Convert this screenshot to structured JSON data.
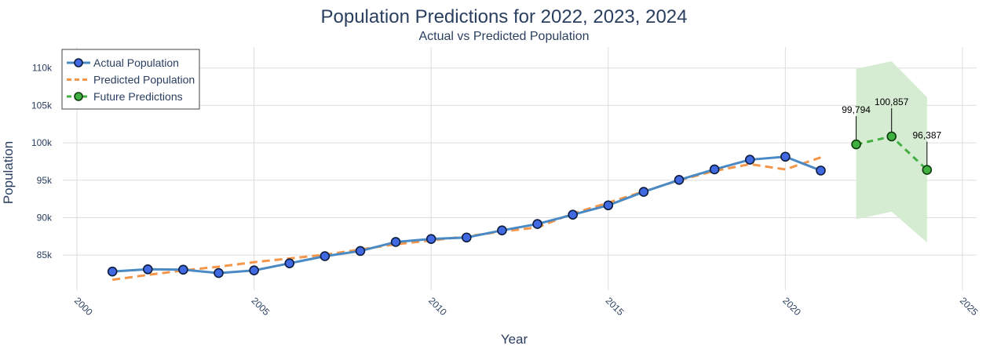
{
  "chart_data": {
    "type": "line",
    "title": "Population Predictions for 2022, 2023, 2024",
    "subtitle": "Actual vs Predicted Population",
    "xlabel": "Year",
    "ylabel": "Population",
    "xlim": [
      1999.6,
      2025.4
    ],
    "ylim": [
      80300,
      112800
    ],
    "xticks": [
      2000,
      2005,
      2010,
      2015,
      2020,
      2025
    ],
    "yticks": [
      85000,
      90000,
      95000,
      100000,
      105000,
      110000
    ],
    "ytick_labels": [
      "85k",
      "90k",
      "95k",
      "100k",
      "105k",
      "110k"
    ],
    "grid": true,
    "legend_position": "top-left",
    "series": [
      {
        "name": "Actual Population",
        "style": "solid-markers",
        "x": [
          2001,
          2002,
          2003,
          2004,
          2005,
          2006,
          2007,
          2008,
          2009,
          2010,
          2011,
          2012,
          2013,
          2014,
          2015,
          2016,
          2017,
          2018,
          2019,
          2020,
          2021
        ],
        "values": [
          82800,
          83100,
          83050,
          82600,
          82950,
          83900,
          84850,
          85550,
          86750,
          87150,
          87350,
          88300,
          89150,
          90400,
          91650,
          93450,
          95050,
          96450,
          97750,
          98150,
          96300
        ]
      },
      {
        "name": "Predicted Population",
        "style": "dashed",
        "x": [
          2001,
          2002,
          2003,
          2004,
          2005,
          2006,
          2007,
          2008,
          2009,
          2010,
          2011,
          2012,
          2013,
          2014,
          2015,
          2016,
          2017,
          2018,
          2019,
          2020,
          2021
        ],
        "values": [
          81700,
          82350,
          82950,
          83450,
          84050,
          84550,
          85050,
          85750,
          86450,
          86950,
          87500,
          88150,
          88700,
          90550,
          92000,
          93500,
          95000,
          96250,
          97150,
          96450,
          98050
        ]
      },
      {
        "name": "Future Predictions",
        "style": "dashed-markers",
        "x": [
          2022,
          2023,
          2024
        ],
        "values": [
          99794,
          100857,
          96387
        ],
        "upper": [
          109900,
          110900,
          106100
        ],
        "lower": [
          89800,
          90800,
          86700
        ]
      }
    ],
    "annotations": [
      {
        "x": 2022,
        "y": 99794,
        "text": "99,794"
      },
      {
        "x": 2023,
        "y": 100857,
        "text": "100,857"
      },
      {
        "x": 2024,
        "y": 96387,
        "text": "96,387"
      }
    ],
    "colors": {
      "actual_line": "#4a8ac4",
      "actual_marker": "#4169e1",
      "actual_marker_edge": "#0b1c3c",
      "predicted": "#f4964a",
      "future_line": "#44b044",
      "future_marker": "#40b040",
      "future_marker_edge": "#0e3a0e",
      "band": "#d3ebd0",
      "text": "#2a3f5f"
    }
  }
}
